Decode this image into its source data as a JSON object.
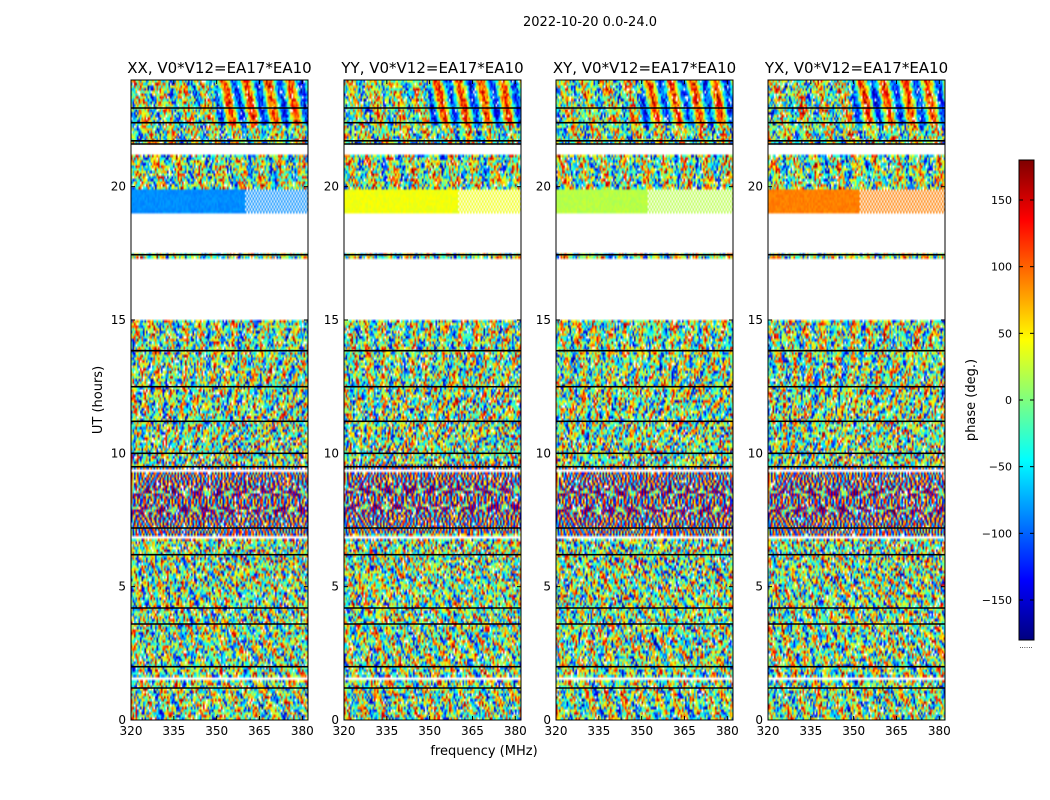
{
  "figure": {
    "suptitle": "2022-10-20 0.0-24.0",
    "xlabel": "frequency (MHz)",
    "ylabel": "UT (hours)",
    "colorbar_label": "phase (deg.)",
    "colorbar_bottom_note": "......"
  },
  "chart_data": {
    "type": "heatmap",
    "x_range_mhz": [
      320,
      382
    ],
    "y_range_hours": [
      0,
      24
    ],
    "x_ticks": [
      "320",
      "335",
      "350",
      "365",
      "380"
    ],
    "x_tick_values": [
      320,
      335,
      350,
      365,
      380
    ],
    "y_ticks": [
      "0",
      "5",
      "10",
      "15",
      "20"
    ],
    "y_tick_values": [
      0,
      5,
      10,
      15,
      20
    ],
    "colorbar": {
      "range": [
        -180,
        180
      ],
      "ticks": [
        "−150",
        "−100",
        "−50",
        "0",
        "50",
        "100",
        "150"
      ],
      "tick_values": [
        -150,
        -100,
        -50,
        0,
        50,
        100,
        150
      ],
      "colormap": [
        "#00007f",
        "#0000ff",
        "#007fff",
        "#00ffff",
        "#7fff7f",
        "#ffff00",
        "#ff7f00",
        "#ff0000",
        "#7f0000"
      ]
    },
    "flagged_hours": [
      [
        21.2,
        21.55
      ],
      [
        17.5,
        19.0
      ],
      [
        15.0,
        17.3
      ],
      [
        9.3,
        9.45
      ],
      [
        6.8,
        6.9
      ],
      [
        1.5,
        1.6
      ]
    ],
    "separator_hours": [
      22.95,
      22.4,
      21.72,
      21.6,
      17.45,
      13.85,
      12.5,
      11.2,
      10.0,
      9.5,
      7.2,
      6.2,
      4.2,
      3.6,
      2.0,
      1.2
    ],
    "panels": [
      {
        "title": "XX, V0*V12=EA17*EA10",
        "uniform_band_hours": [
          18.9,
          19.9
        ],
        "uniform_band_phase": -85,
        "uniform_band_end_mhz": 360,
        "fringe_hour": 8.2
      },
      {
        "title": "YY, V0*V12=EA17*EA10",
        "uniform_band_hours": [
          18.9,
          19.9
        ],
        "uniform_band_phase": 40,
        "uniform_band_end_mhz": 360,
        "fringe_hour": 8.3
      },
      {
        "title": "XY, V0*V12=EA17*EA10",
        "uniform_band_hours": [
          18.9,
          19.9
        ],
        "uniform_band_phase": 20,
        "uniform_band_end_mhz": 352,
        "fringe_hour": 8.2
      },
      {
        "title": "YX, V0*V12=EA17*EA10",
        "uniform_band_hours": [
          18.9,
          19.9
        ],
        "uniform_band_phase": 90,
        "uniform_band_end_mhz": 352,
        "fringe_hour": 8.2
      }
    ]
  }
}
